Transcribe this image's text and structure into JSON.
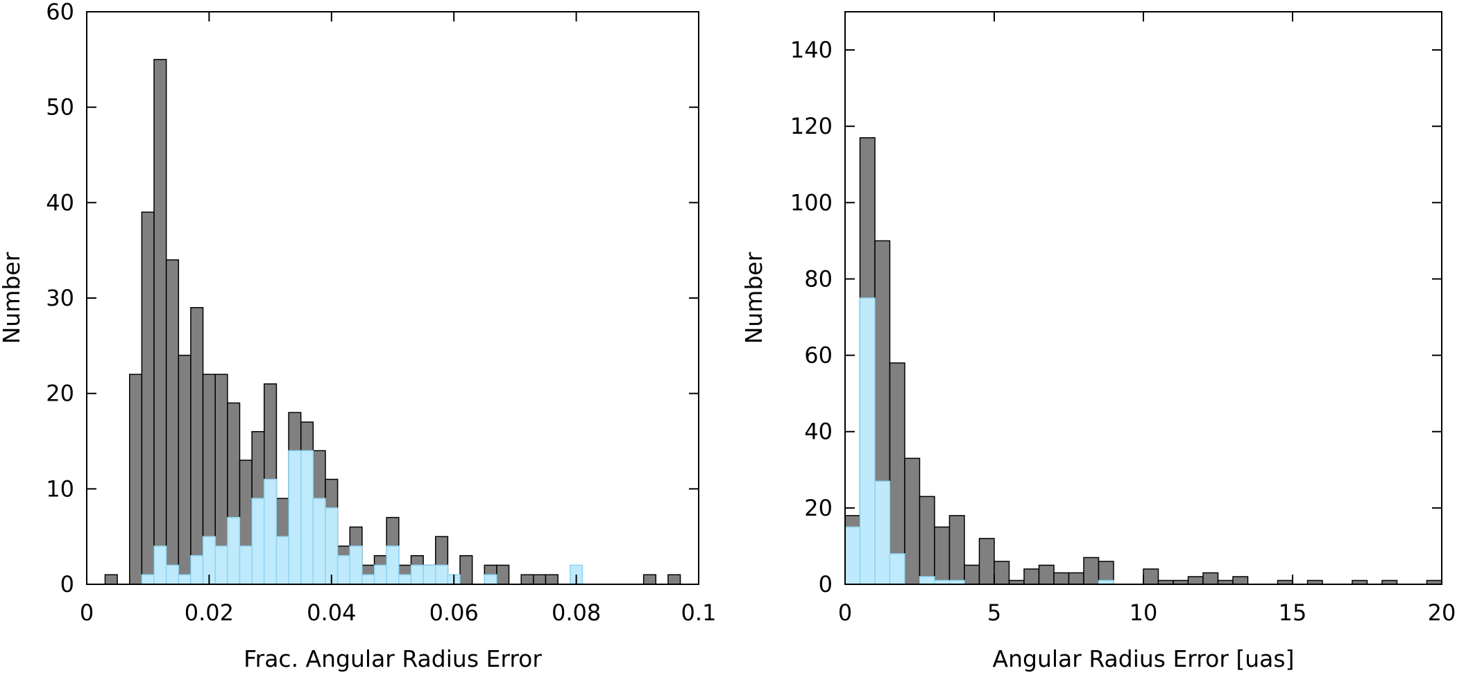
{
  "colors": {
    "all": "#808080",
    "subset": "#bfeafc",
    "axis": "#000000"
  },
  "chart_data": [
    {
      "type": "bar",
      "xlabel": "Frac. Angular Radius Error",
      "ylabel": "Number",
      "xlim": [
        0,
        0.1
      ],
      "ylim": [
        0,
        60
      ],
      "xticks": [
        0,
        0.02,
        0.04,
        0.06,
        0.08,
        0.1
      ],
      "xtick_labels": [
        "0",
        "0.02",
        "0.04",
        "0.06",
        "0.08",
        "0.1"
      ],
      "yticks": [
        0,
        10,
        20,
        30,
        40,
        50,
        60
      ],
      "ytick_labels": [
        "0",
        "10",
        "20",
        "30",
        "40",
        "50",
        "60"
      ],
      "bin_start": 0.003,
      "bin_width": 0.002,
      "series": [
        {
          "values": [
            1,
            0,
            22,
            39,
            55,
            34,
            24,
            29,
            22,
            22,
            19,
            13,
            16,
            21,
            9,
            18,
            17,
            14,
            11,
            4,
            6,
            2,
            3,
            7,
            2,
            3,
            2,
            5,
            0,
            3,
            0,
            2,
            2,
            0,
            1,
            1,
            1,
            0,
            0,
            0,
            0,
            0,
            0,
            0,
            1,
            0,
            1
          ]
        },
        {
          "values": [
            0,
            0,
            0,
            1,
            4,
            2,
            1,
            3,
            5,
            4,
            7,
            4,
            9,
            11,
            5,
            14,
            14,
            9,
            8,
            3,
            4,
            1,
            2,
            4,
            1,
            2,
            2,
            2,
            1,
            0,
            0,
            1,
            0,
            0,
            0,
            0,
            0,
            0,
            2,
            0,
            0,
            0,
            0,
            0,
            0,
            0,
            0
          ]
        }
      ]
    },
    {
      "type": "bar",
      "xlabel": "Angular Radius Error [uas]",
      "ylabel": "Number",
      "xlim": [
        0,
        20
      ],
      "ylim": [
        0,
        150
      ],
      "xticks": [
        0,
        5,
        10,
        15,
        20
      ],
      "xtick_labels": [
        "0",
        "5",
        "10",
        "15",
        "20"
      ],
      "yticks": [
        0,
        20,
        40,
        60,
        80,
        100,
        120,
        140
      ],
      "ytick_labels": [
        "0",
        "20",
        "40",
        "60",
        "80",
        "100",
        "120",
        "140"
      ],
      "bin_start": 0,
      "bin_width": 0.5,
      "series": [
        {
          "values": [
            18,
            117,
            90,
            58,
            33,
            23,
            15,
            18,
            5,
            12,
            6,
            1,
            4,
            5,
            3,
            3,
            7,
            6,
            0,
            0,
            4,
            1,
            1,
            2,
            3,
            1,
            2,
            0,
            0,
            1,
            0,
            1,
            0,
            0,
            1,
            0,
            1,
            0,
            0,
            1
          ]
        },
        {
          "values": [
            15,
            75,
            27,
            8,
            0,
            2,
            1,
            1,
            0,
            0,
            0,
            0,
            0,
            0,
            0,
            0,
            0,
            1,
            0,
            0,
            0,
            0,
            0,
            0,
            0,
            0,
            0,
            0,
            0,
            0,
            0,
            0,
            0,
            0,
            0,
            0,
            0,
            0,
            0,
            0
          ]
        }
      ]
    }
  ]
}
